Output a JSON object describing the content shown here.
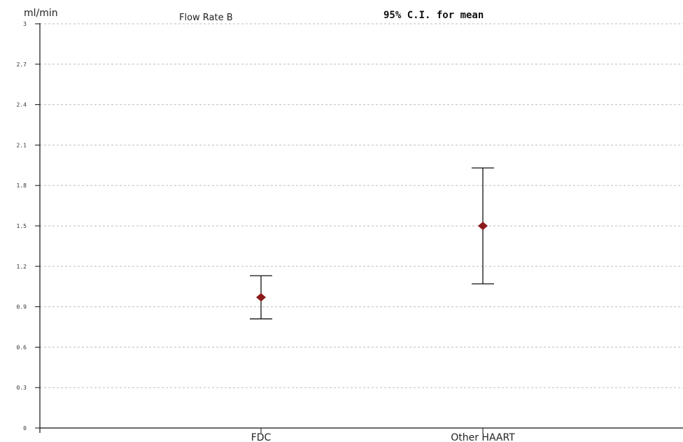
{
  "chart_data": {
    "type": "errorbar",
    "title": "Flow Rate  B",
    "subtitle": "95% C.I. for mean",
    "ylabel": "ml/min",
    "ylim": [
      0,
      3
    ],
    "yticks": [
      {
        "value": 0,
        "label": "0"
      },
      {
        "value": 0.3,
        "label": "0.3"
      },
      {
        "value": 0.6,
        "label": "0.6"
      },
      {
        "value": 0.9,
        "label": "0.9"
      },
      {
        "value": 1.2,
        "label": "1.2"
      },
      {
        "value": 1.5,
        "label": "1.5"
      },
      {
        "value": 1.8,
        "label": "1.8"
      },
      {
        "value": 2.1,
        "label": "2.1"
      },
      {
        "value": 2.4,
        "label": "2.4"
      },
      {
        "value": 2.7,
        "label": "2.7"
      },
      {
        "value": 3,
        "label": "3"
      }
    ],
    "grid": true,
    "categories": [
      "FDC",
      "Other HAART"
    ],
    "points": [
      {
        "category": "FDC",
        "mean": 0.97,
        "lower": 0.81,
        "upper": 1.13
      },
      {
        "category": "Other HAART",
        "mean": 1.5,
        "lower": 1.07,
        "upper": 1.93
      }
    ],
    "colors": {
      "mean_marker": "#8b1a1a",
      "error_bar": "#111111",
      "grid": "#bdbdbd"
    }
  }
}
